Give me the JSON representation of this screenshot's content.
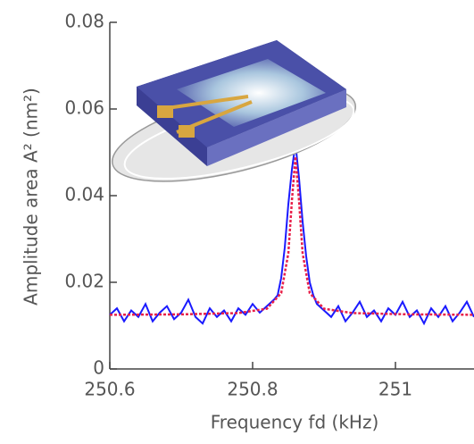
{
  "chart_data": {
    "type": "line",
    "xlabel": "Frequency fd (kHz)",
    "ylabel": "Amplitude area A² (nm²)",
    "xlim": [
      250.6,
      251.11
    ],
    "ylim": [
      0,
      0.08
    ],
    "xticks": [
      250.6,
      250.8,
      251
    ],
    "yticks": [
      0,
      0.02,
      0.04,
      0.06,
      0.08
    ],
    "series": [
      {
        "color": "#1a1aff",
        "x": [
          250.6,
          250.61,
          250.62,
          250.63,
          250.64,
          250.65,
          250.66,
          250.67,
          250.68,
          250.69,
          250.7,
          250.71,
          250.72,
          250.73,
          250.74,
          250.75,
          250.76,
          250.77,
          250.78,
          250.79,
          250.8,
          250.81,
          250.82,
          250.83,
          250.835,
          250.84,
          250.845,
          250.85,
          250.855,
          250.86,
          250.865,
          250.87,
          250.875,
          250.88,
          250.885,
          250.89,
          250.9,
          250.91,
          250.92,
          250.93,
          250.94,
          250.95,
          250.96,
          250.97,
          250.98,
          250.99,
          251,
          251.01,
          251.02,
          251.03,
          251.04,
          251.05,
          251.06,
          251.07,
          251.08,
          251.09,
          251.1,
          251.11
        ],
        "values": [
          0.0125,
          0.014,
          0.011,
          0.0135,
          0.012,
          0.015,
          0.011,
          0.013,
          0.0145,
          0.0115,
          0.013,
          0.016,
          0.012,
          0.0105,
          0.014,
          0.012,
          0.0135,
          0.011,
          0.014,
          0.0125,
          0.015,
          0.013,
          0.0145,
          0.016,
          0.017,
          0.021,
          0.028,
          0.038,
          0.046,
          0.052,
          0.044,
          0.034,
          0.026,
          0.02,
          0.017,
          0.015,
          0.0135,
          0.012,
          0.0145,
          0.011,
          0.013,
          0.0155,
          0.012,
          0.0135,
          0.011,
          0.014,
          0.0125,
          0.0155,
          0.012,
          0.0135,
          0.0105,
          0.014,
          0.012,
          0.0145,
          0.011,
          0.013,
          0.0155,
          0.012
        ]
      },
      {
        "color": "#e8204a",
        "x": [
          250.6,
          250.7,
          250.78,
          250.82,
          250.84,
          250.85,
          250.855,
          250.86,
          250.865,
          250.87,
          250.88,
          250.9,
          250.94,
          251.02,
          251.11
        ],
        "values": [
          0.0125,
          0.0126,
          0.0129,
          0.0139,
          0.0175,
          0.0267,
          0.0388,
          0.049,
          0.0388,
          0.0267,
          0.0175,
          0.0139,
          0.0129,
          0.0126,
          0.0125
        ]
      }
    ]
  }
}
